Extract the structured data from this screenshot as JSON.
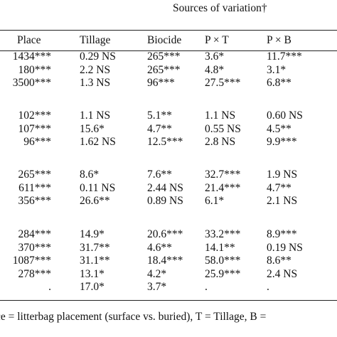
{
  "header": {
    "title": "Sources of variation†",
    "columns": [
      "Place",
      "Tillage",
      "Biocide",
      "P × T",
      "P × B"
    ]
  },
  "table": {
    "groups": [
      [
        [
          "1434***",
          "0.29 NS",
          "265***",
          "3.6*",
          "11.7***"
        ],
        [
          "180***",
          "2.2 NS",
          "265***",
          "4.8*",
          "3.1*"
        ],
        [
          "3500***",
          "1.3 NS",
          "96***",
          "27.5***",
          "6.8**"
        ]
      ],
      [
        [
          "102***",
          "1.1 NS",
          "5.1**",
          "1.1 NS",
          "0.60 NS"
        ],
        [
          "107***",
          "15.6*",
          "4.7**",
          "0.55 NS",
          "4.5**"
        ],
        [
          "96***",
          "1.62 NS",
          "12.5***",
          "2.8 NS",
          "9.9***"
        ]
      ],
      [
        [
          "265***",
          "8.6*",
          "7.6**",
          "32.7***",
          "1.9 NS"
        ],
        [
          "611***",
          "0.11 NS",
          "2.44 NS",
          "21.4***",
          "4.7**"
        ],
        [
          "356***",
          "26.6**",
          "0.89 NS",
          "6.1*",
          "2.1 NS"
        ]
      ],
      [
        [
          "284***",
          "14.9*",
          "20.6***",
          "33.2***",
          "8.9***"
        ],
        [
          "370***",
          "31.7**",
          "4.6**",
          "14.1**",
          "0.19 NS"
        ],
        [
          "1087***",
          "31.1**",
          "18.4***",
          "58.0***",
          "8.6**"
        ],
        [
          "278***",
          "13.1*",
          "4.2*",
          "25.9***",
          "2.4 NS"
        ],
        [
          ".",
          "17.0*",
          "3.7*",
          ".",
          "."
        ]
      ]
    ]
  },
  "footnote": "ce = litterbag placement (surface vs. buried), T = Tillage, B ="
}
